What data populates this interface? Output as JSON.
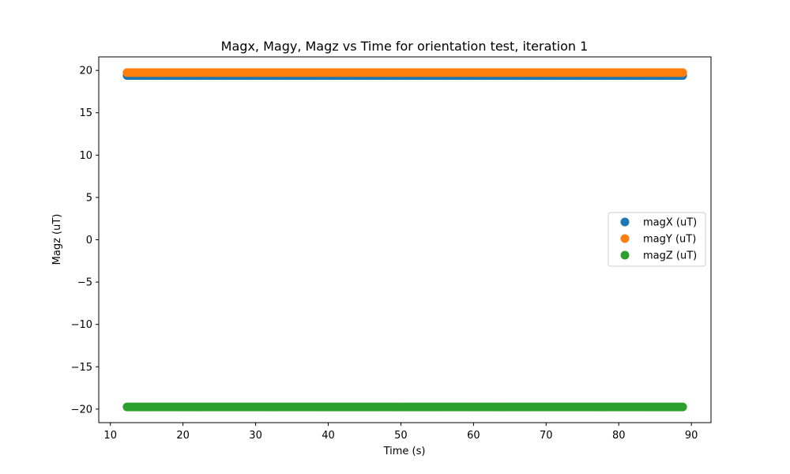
{
  "chart_data": {
    "type": "scatter",
    "title": "Magx, Magy, Magz vs Time for orientation test, iteration 1",
    "xlabel": "Time (s)",
    "ylabel": "Magz (uT)",
    "xlim": [
      8.4,
      92.7
    ],
    "ylim": [
      -21.6,
      21.6
    ],
    "xticks": [
      10,
      20,
      30,
      40,
      50,
      60,
      70,
      80,
      90
    ],
    "yticks": [
      -20,
      -15,
      -10,
      -5,
      0,
      5,
      10,
      15,
      20
    ],
    "ytick_labels": [
      "−20",
      "−15",
      "−10",
      "−5",
      "0",
      "5",
      "10",
      "15",
      "20"
    ],
    "legend_position": "center-right",
    "grid": false,
    "series": [
      {
        "name": "magX (uT)",
        "color": "#1f77b4",
        "x_start": 12.3,
        "x_end": 88.9,
        "x_step": 0.25,
        "y": 19.4
      },
      {
        "name": "magY (uT)",
        "color": "#ff7f0e",
        "x_start": 12.3,
        "x_end": 88.9,
        "x_step": 0.25,
        "y": 19.75
      },
      {
        "name": "magZ (uT)",
        "color": "#2ca02c",
        "x_start": 12.3,
        "x_end": 88.9,
        "x_step": 0.25,
        "y": -19.75
      }
    ]
  }
}
